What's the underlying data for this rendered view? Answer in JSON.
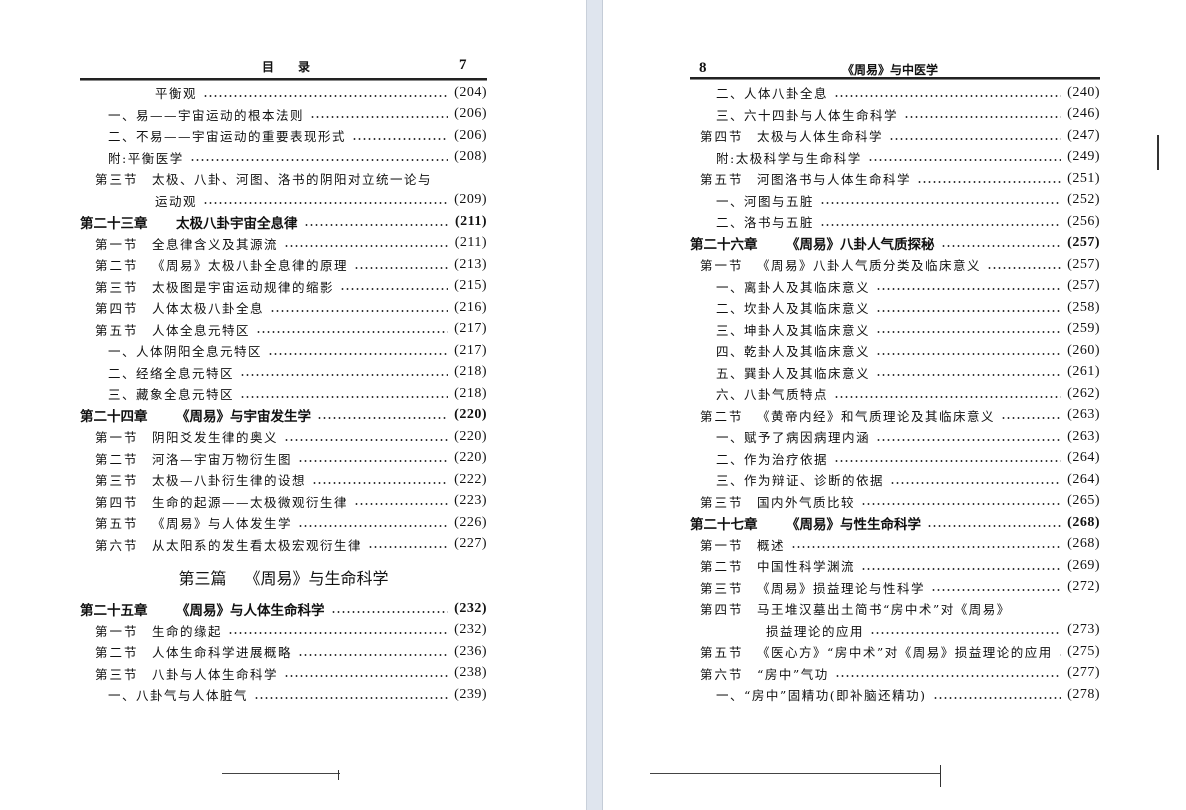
{
  "left_page": {
    "header_title": "目　　录",
    "page_number": "7",
    "entries": [
      {
        "level": "cont",
        "num": "",
        "title": "平衡观",
        "page": "(204)"
      },
      {
        "level": "item",
        "num": "",
        "title": "一、易——宇宙运动的根本法则",
        "page": "(206)"
      },
      {
        "level": "item",
        "num": "",
        "title": "二、不易——宇宙运动的重要表现形式",
        "page": "(206)"
      },
      {
        "level": "item",
        "num": "",
        "title": "附:平衡医学",
        "page": "(208)"
      },
      {
        "level": "section",
        "num": "第三节",
        "title": "太极、八卦、河图、洛书的阴阳对立统一论与",
        "page": ""
      },
      {
        "level": "cont",
        "num": "",
        "title": "运动观",
        "page": "(209)"
      },
      {
        "level": "chapter",
        "num": "第二十三章",
        "title": "太极八卦宇宙全息律",
        "page": "(211)"
      },
      {
        "level": "section",
        "num": "第一节",
        "title": "全息律含义及其源流",
        "page": "(211)"
      },
      {
        "level": "section",
        "num": "第二节",
        "title": "《周易》太极八卦全息律的原理",
        "page": "(213)"
      },
      {
        "level": "section",
        "num": "第三节",
        "title": "太极图是宇宙运动规律的缩影",
        "page": "(215)"
      },
      {
        "level": "section",
        "num": "第四节",
        "title": "人体太极八卦全息",
        "page": "(216)"
      },
      {
        "level": "section",
        "num": "第五节",
        "title": "人体全息元特区",
        "page": "(217)"
      },
      {
        "level": "item",
        "num": "",
        "title": "一、人体阴阳全息元特区",
        "page": "(217)"
      },
      {
        "level": "item",
        "num": "",
        "title": "二、经络全息元特区",
        "page": "(218)"
      },
      {
        "level": "item",
        "num": "",
        "title": "三、藏象全息元特区",
        "page": "(218)"
      },
      {
        "level": "chapter",
        "num": "第二十四章",
        "title": "《周易》与宇宙发生学",
        "page": "(220)"
      },
      {
        "level": "section",
        "num": "第一节",
        "title": "阴阳爻发生律的奥义",
        "page": "(220)"
      },
      {
        "level": "section",
        "num": "第二节",
        "title": "河洛—宇宙万物衍生图",
        "page": "(220)"
      },
      {
        "level": "section",
        "num": "第三节",
        "title": "太极—八卦衍生律的设想",
        "page": "(222)"
      },
      {
        "level": "section",
        "num": "第四节",
        "title": "生命的起源——太极微观衍生律",
        "page": "(223)"
      },
      {
        "level": "section",
        "num": "第五节",
        "title": "《周易》与人体发生学",
        "page": "(226)"
      },
      {
        "level": "section",
        "num": "第六节",
        "title": "从太阳系的发生看太极宏观衍生律",
        "page": "(227)"
      },
      {
        "level": "part",
        "num": "第三篇",
        "title": "《周易》与生命科学",
        "page": ""
      },
      {
        "level": "chapter",
        "num": "第二十五章",
        "title": "《周易》与人体生命科学",
        "page": "(232)"
      },
      {
        "level": "section",
        "num": "第一节",
        "title": "生命的缘起",
        "page": "(232)"
      },
      {
        "level": "section",
        "num": "第二节",
        "title": "人体生命科学进展概略",
        "page": "(236)"
      },
      {
        "level": "section",
        "num": "第三节",
        "title": "八卦与人体生命科学",
        "page": "(238)"
      },
      {
        "level": "item",
        "num": "",
        "title": "一、八卦气与人体脏气",
        "page": "(239)"
      }
    ]
  },
  "right_page": {
    "header_title": "《周易》与中医学",
    "page_number": "8",
    "entries": [
      {
        "level": "item",
        "num": "",
        "title": "二、人体八卦全息",
        "page": "(240)"
      },
      {
        "level": "item",
        "num": "",
        "title": "三、六十四卦与人体生命科学",
        "page": "(246)"
      },
      {
        "level": "section",
        "num": "第四节",
        "title": "太极与人体生命科学",
        "page": "(247)"
      },
      {
        "level": "item",
        "num": "",
        "title": "附:太极科学与生命科学",
        "page": "(249)"
      },
      {
        "level": "section",
        "num": "第五节",
        "title": "河图洛书与人体生命科学",
        "page": "(251)"
      },
      {
        "level": "item",
        "num": "",
        "title": "一、河图与五脏",
        "page": "(252)"
      },
      {
        "level": "item",
        "num": "",
        "title": "二、洛书与五脏",
        "page": "(256)"
      },
      {
        "level": "chapter",
        "num": "第二十六章",
        "title": "《周易》八卦人气质探秘",
        "page": "(257)"
      },
      {
        "level": "section",
        "num": "第一节",
        "title": "《周易》八卦人气质分类及临床意义",
        "page": "(257)"
      },
      {
        "level": "item",
        "num": "",
        "title": "一、离卦人及其临床意义",
        "page": "(257)"
      },
      {
        "level": "item",
        "num": "",
        "title": "二、坎卦人及其临床意义",
        "page": "(258)"
      },
      {
        "level": "item",
        "num": "",
        "title": "三、坤卦人及其临床意义",
        "page": "(259)"
      },
      {
        "level": "item",
        "num": "",
        "title": "四、乾卦人及其临床意义",
        "page": "(260)"
      },
      {
        "level": "item",
        "num": "",
        "title": "五、巽卦人及其临床意义",
        "page": "(261)"
      },
      {
        "level": "item",
        "num": "",
        "title": "六、八卦气质特点",
        "page": "(262)"
      },
      {
        "level": "section",
        "num": "第二节",
        "title": "《黄帝内经》和气质理论及其临床意义",
        "page": "(263)"
      },
      {
        "level": "item",
        "num": "",
        "title": "一、赋予了病因病理内涵",
        "page": "(263)"
      },
      {
        "level": "item",
        "num": "",
        "title": "二、作为治疗依据",
        "page": "(264)"
      },
      {
        "level": "item",
        "num": "",
        "title": "三、作为辩证、诊断的依据",
        "page": "(264)"
      },
      {
        "level": "section",
        "num": "第三节",
        "title": "国内外气质比较",
        "page": "(265)"
      },
      {
        "level": "chapter",
        "num": "第二十七章",
        "title": "《周易》与性生命科学",
        "page": "(268)"
      },
      {
        "level": "section",
        "num": "第一节",
        "title": "概述",
        "page": "(268)"
      },
      {
        "level": "section",
        "num": "第二节",
        "title": "中国性科学渊流",
        "page": "(269)"
      },
      {
        "level": "section",
        "num": "第三节",
        "title": "《周易》损益理论与性科学",
        "page": "(272)"
      },
      {
        "level": "section",
        "num": "第四节",
        "title": "马王堆汉墓出土简书“房中术”对《周易》",
        "page": ""
      },
      {
        "level": "cont",
        "num": "",
        "title": "损益理论的应用",
        "page": "(273)"
      },
      {
        "level": "section",
        "num": "第五节",
        "title": "《医心方》“房中术”对《周易》损益理论的应用",
        "page": "(275)"
      },
      {
        "level": "section",
        "num": "第六节",
        "title": "“房中”气功",
        "page": "(277)"
      },
      {
        "level": "item",
        "num": "",
        "title": "一、“房中”固精功(即补脑还精功)",
        "page": "(278)"
      }
    ]
  }
}
